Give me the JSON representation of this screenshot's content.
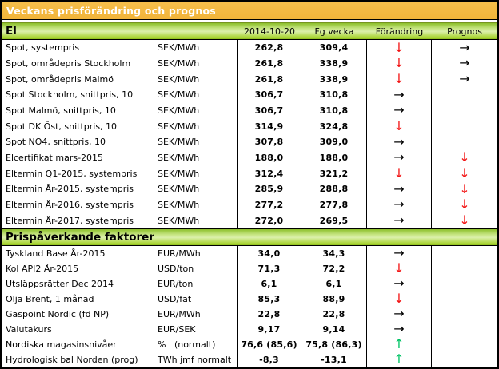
{
  "window": {
    "title": "Veckans prisförändring och prognos"
  },
  "columns": {
    "current": "2014-10-20",
    "previous": "Fg vecka",
    "change": "Förändring",
    "forecast": "Prognos"
  },
  "colors": {
    "title_bg": "#f2b63e",
    "section_green": "#a8d434",
    "arrow_down": "#f21414",
    "arrow_right": "#000000",
    "arrow_up": "#00c365"
  },
  "arrow_glyphs": {
    "down": "↓",
    "right": "→",
    "up": "↑"
  },
  "sections": [
    {
      "header": "El",
      "show_column_headers": true,
      "rows": [
        {
          "label": "Spot, systempris",
          "unit": "SEK/MWh",
          "current": "262,8",
          "previous": "309,4",
          "change": "down",
          "forecast": "right"
        },
        {
          "label": "Spot, områdepris Stockholm",
          "unit": "SEK/MWh",
          "current": "261,8",
          "previous": "338,9",
          "change": "down",
          "forecast": "right"
        },
        {
          "label": "Spot, områdepris Malmö",
          "unit": "SEK/MWh",
          "current": "261,8",
          "previous": "338,9",
          "change": "down",
          "forecast": "right"
        },
        {
          "label": "Spot Stockholm, snittpris,  10",
          "unit": "SEK/MWh",
          "current": "306,7",
          "previous": "310,8",
          "change": "right",
          "forecast": ""
        },
        {
          "label": "Spot Malmö, snittpris,  10",
          "unit": "SEK/MWh",
          "current": "306,7",
          "previous": "310,8",
          "change": "right",
          "forecast": ""
        },
        {
          "label": "Spot DK Öst, snittpris,  10",
          "unit": "SEK/MWh",
          "current": "314,9",
          "previous": "324,8",
          "change": "down",
          "forecast": ""
        },
        {
          "label": "Spot NO4, snittpris,  10",
          "unit": "SEK/MWh",
          "current": "307,8",
          "previous": "309,0",
          "change": "right",
          "forecast": ""
        },
        {
          "label": "Elcertifikat mars-2015",
          "unit": "SEK/MWh",
          "current": "188,0",
          "previous": "188,0",
          "change": "right",
          "forecast": "down"
        },
        {
          "label": "Eltermin Q1-2015, systempris",
          "unit": "SEK/MWh",
          "current": "312,4",
          "previous": "321,2",
          "change": "down",
          "forecast": "down"
        },
        {
          "label": "Eltermin År-2015, systempris",
          "unit": "SEK/MWh",
          "current": "285,9",
          "previous": "288,8",
          "change": "right",
          "forecast": "down"
        },
        {
          "label": "Eltermin År-2016, systempris",
          "unit": "SEK/MWh",
          "current": "277,2",
          "previous": "277,8",
          "change": "right",
          "forecast": "down"
        },
        {
          "label": "Eltermin År-2017, systempris",
          "unit": "SEK/MWh",
          "current": "272,0",
          "previous": "269,5",
          "change": "right",
          "forecast": "down"
        }
      ]
    },
    {
      "header": "Prispåverkande faktorer",
      "show_column_headers": false,
      "rows": [
        {
          "label": "Tyskland Base År-2015",
          "unit": "EUR/MWh",
          "current": "34,0",
          "previous": "34,3",
          "change": "right",
          "forecast": ""
        },
        {
          "label": "Kol API2 År-2015",
          "unit": "USD/ton",
          "current": "71,3",
          "previous": "72,2",
          "change": "down",
          "forecast": "",
          "divider_below_change": true
        },
        {
          "label": "Utsläppsrätter Dec 2014",
          "unit": "EUR/ton",
          "current": "6,1",
          "previous": "6,1",
          "change": "right",
          "forecast": ""
        },
        {
          "label": "Olja Brent, 1 månad",
          "unit": "USD/fat",
          "current": "85,3",
          "previous": "88,9",
          "change": "down",
          "forecast": ""
        },
        {
          "label": "Gaspoint Nordic (fd NP)",
          "unit": "EUR/MWh",
          "current": "22,8",
          "previous": "22,8",
          "change": "right",
          "forecast": ""
        },
        {
          "label": "Valutakurs",
          "unit": "EUR/SEK",
          "current": "9,17",
          "previous": "9,14",
          "change": "right",
          "forecast": ""
        },
        {
          "label": "Nordiska magasinsnivåer",
          "unit": "%   (normalt)",
          "current": "76,6 (85,6)",
          "previous": "75,8 (86,3)",
          "change": "up",
          "forecast": ""
        },
        {
          "label": "Hydrologisk bal Norden (prog)",
          "unit": "TWh jmf normalt",
          "current": "-8,3",
          "previous": "-13,1",
          "change": "up",
          "forecast": ""
        }
      ]
    }
  ]
}
